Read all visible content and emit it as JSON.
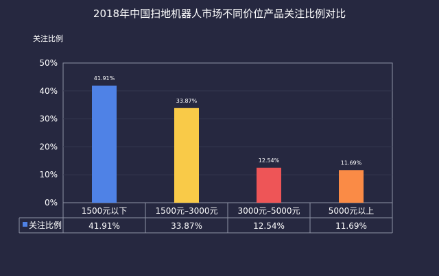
{
  "chart_data": {
    "type": "bar",
    "title": "2018年中国扫地机器人市场不同价位产品关注比例对比",
    "ylabel": "关注比例",
    "xlabel": "",
    "categories": [
      "1500元以下",
      "1500元–3000元",
      "3000元–5000元",
      "5000元以上"
    ],
    "series": [
      {
        "name": "关注比例",
        "values": [
          41.91,
          33.87,
          12.54,
          11.69
        ]
      }
    ],
    "value_labels": [
      "41.91%",
      "33.87%",
      "12.54%",
      "11.69%"
    ],
    "bar_colors": [
      "#4f82e6",
      "#f9ca48",
      "#ee5557",
      "#fa8b46"
    ],
    "ylim": [
      0,
      50
    ],
    "yticks": [
      "0%",
      "10%",
      "20%",
      "30%",
      "40%",
      "50%"
    ],
    "legend_position": "data table",
    "grid": true
  }
}
